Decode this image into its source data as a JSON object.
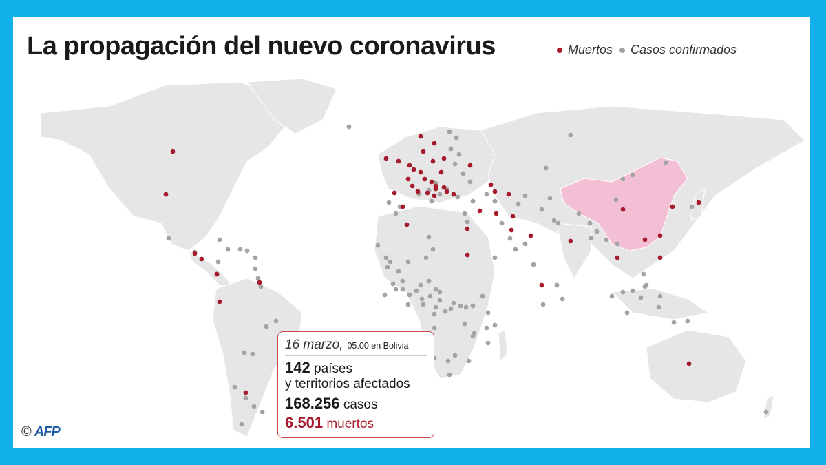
{
  "title": "La propagación del nuevo coronavirus",
  "legend": {
    "deaths_label": "Muertos",
    "cases_label": "Casos confirmados",
    "deaths_color": "#a61b2b",
    "cases_color": "#a3a3a3"
  },
  "highlight_color": "#f2bfd4",
  "land_color": "#e6e6e6",
  "info": {
    "date": "16 marzo,",
    "time": "05.00 en Bolivia",
    "countries_number": "142",
    "countries_text_1": "países",
    "countries_text_2": "y territorios afectados",
    "cases_number": "168.256",
    "cases_text": "casos",
    "deaths_number": "6.501",
    "deaths_text": "muertos"
  },
  "credit": {
    "symbol": "©",
    "agency": "AFP"
  }
}
